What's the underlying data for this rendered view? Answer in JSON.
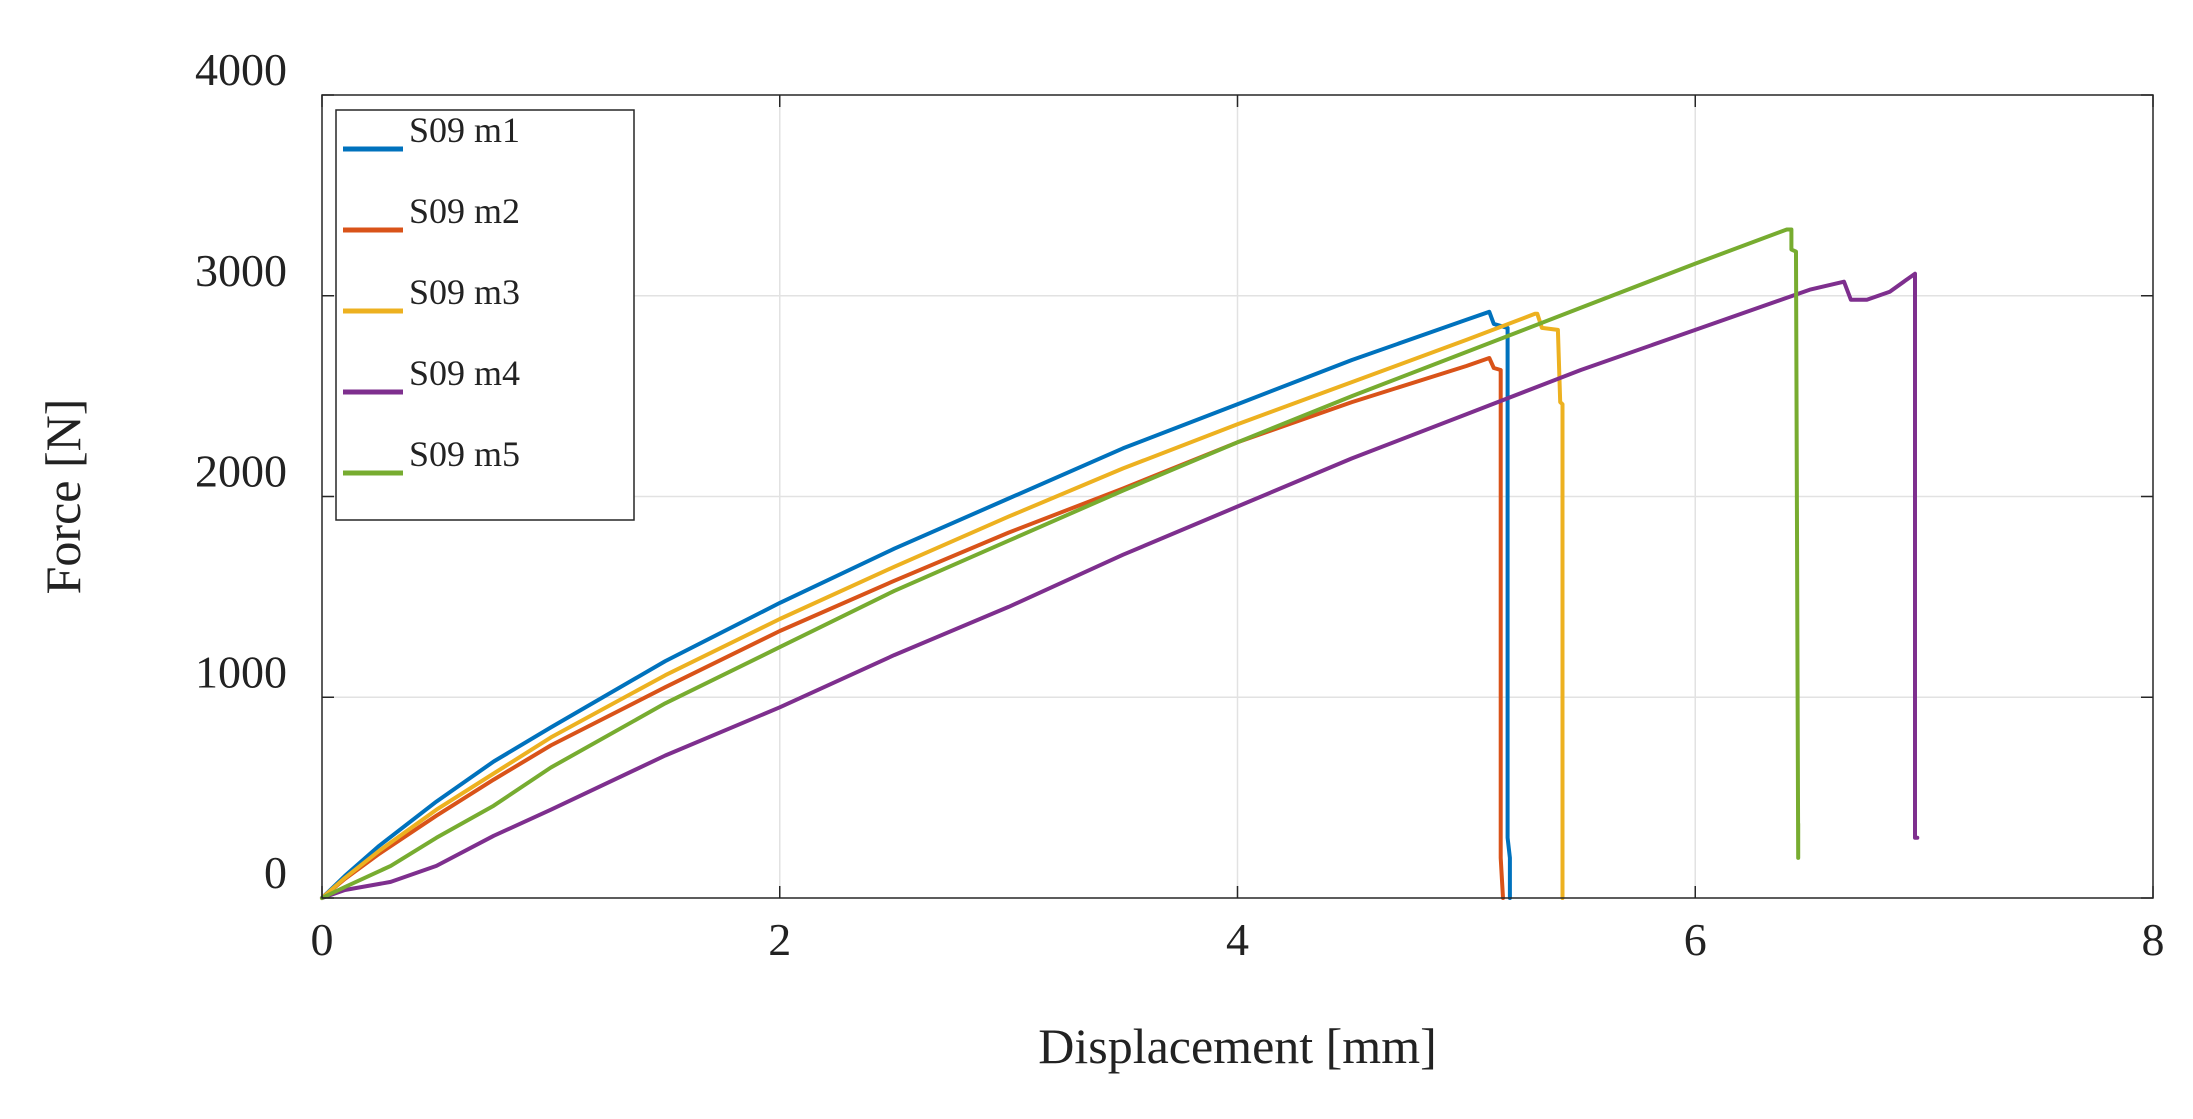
{
  "chart_data": {
    "type": "line",
    "title": "",
    "xlabel": "Displacement [mm]",
    "ylabel": "Force [N]",
    "xlim": [
      0,
      8
    ],
    "ylim": [
      0,
      4000
    ],
    "xticks": [
      "0",
      "2",
      "4",
      "6",
      "8"
    ],
    "yticks": [
      "0",
      "1000",
      "2000",
      "3000",
      "4000"
    ],
    "grid": true,
    "legend_position": "top-left",
    "series": [
      {
        "name": "S09 m1",
        "color": "#0072BD",
        "points": [
          [
            0,
            0
          ],
          [
            0.1,
            110
          ],
          [
            0.25,
            260
          ],
          [
            0.5,
            480
          ],
          [
            0.75,
            680
          ],
          [
            1,
            850
          ],
          [
            1.5,
            1180
          ],
          [
            2,
            1470
          ],
          [
            2.5,
            1740
          ],
          [
            3,
            1990
          ],
          [
            3.5,
            2240
          ],
          [
            4,
            2460
          ],
          [
            4.5,
            2680
          ],
          [
            5,
            2880
          ],
          [
            5.1,
            2920
          ],
          [
            5.12,
            2860
          ],
          [
            5.18,
            2840
          ],
          [
            5.18,
            300
          ],
          [
            5.19,
            200
          ],
          [
            5.19,
            0
          ]
        ]
      },
      {
        "name": "S09 m2",
        "color": "#D95319",
        "points": [
          [
            0,
            0
          ],
          [
            0.1,
            95
          ],
          [
            0.25,
            220
          ],
          [
            0.5,
            410
          ],
          [
            0.75,
            590
          ],
          [
            1,
            760
          ],
          [
            1.5,
            1050
          ],
          [
            2,
            1330
          ],
          [
            2.5,
            1580
          ],
          [
            3,
            1820
          ],
          [
            3.5,
            2040
          ],
          [
            4,
            2270
          ],
          [
            4.5,
            2470
          ],
          [
            5,
            2650
          ],
          [
            5.1,
            2690
          ],
          [
            5.12,
            2640
          ],
          [
            5.15,
            2630
          ],
          [
            5.15,
            200
          ],
          [
            5.16,
            0
          ]
        ]
      },
      {
        "name": "S09 m3",
        "color": "#EDB120",
        "points": [
          [
            0,
            0
          ],
          [
            0.1,
            100
          ],
          [
            0.25,
            235
          ],
          [
            0.5,
            440
          ],
          [
            0.75,
            620
          ],
          [
            1,
            800
          ],
          [
            1.5,
            1110
          ],
          [
            2,
            1390
          ],
          [
            2.5,
            1650
          ],
          [
            3,
            1900
          ],
          [
            3.5,
            2140
          ],
          [
            4,
            2360
          ],
          [
            4.5,
            2570
          ],
          [
            5,
            2780
          ],
          [
            5.3,
            2910
          ],
          [
            5.31,
            2910
          ],
          [
            5.33,
            2840
          ],
          [
            5.4,
            2830
          ],
          [
            5.41,
            2470
          ],
          [
            5.42,
            2460
          ],
          [
            5.42,
            0
          ]
        ]
      },
      {
        "name": "S09 m4",
        "color": "#7E2F8E",
        "points": [
          [
            0,
            0
          ],
          [
            0.1,
            40
          ],
          [
            0.3,
            80
          ],
          [
            0.5,
            160
          ],
          [
            0.75,
            310
          ],
          [
            1,
            440
          ],
          [
            1.5,
            710
          ],
          [
            2,
            950
          ],
          [
            2.5,
            1210
          ],
          [
            3,
            1450
          ],
          [
            3.5,
            1710
          ],
          [
            4,
            1950
          ],
          [
            4.5,
            2190
          ],
          [
            5,
            2410
          ],
          [
            5.5,
            2630
          ],
          [
            6,
            2830
          ],
          [
            6.5,
            3030
          ],
          [
            6.65,
            3070
          ],
          [
            6.68,
            2980
          ],
          [
            6.75,
            2980
          ],
          [
            6.85,
            3020
          ],
          [
            6.96,
            3110
          ],
          [
            6.96,
            300
          ],
          [
            6.97,
            300
          ]
        ]
      },
      {
        "name": "S09 m5",
        "color": "#77AC30",
        "points": [
          [
            0,
            0
          ],
          [
            0.1,
            55
          ],
          [
            0.3,
            160
          ],
          [
            0.5,
            300
          ],
          [
            0.75,
            460
          ],
          [
            1,
            650
          ],
          [
            1.5,
            970
          ],
          [
            2,
            1250
          ],
          [
            2.5,
            1530
          ],
          [
            3,
            1780
          ],
          [
            3.5,
            2030
          ],
          [
            4,
            2270
          ],
          [
            4.5,
            2500
          ],
          [
            5,
            2720
          ],
          [
            5.5,
            2940
          ],
          [
            6,
            3160
          ],
          [
            6.4,
            3330
          ],
          [
            6.42,
            3330
          ],
          [
            6.42,
            3230
          ],
          [
            6.44,
            3220
          ],
          [
            6.44,
            3200
          ],
          [
            6.45,
            200
          ],
          [
            6.45,
            370
          ]
        ]
      }
    ]
  }
}
